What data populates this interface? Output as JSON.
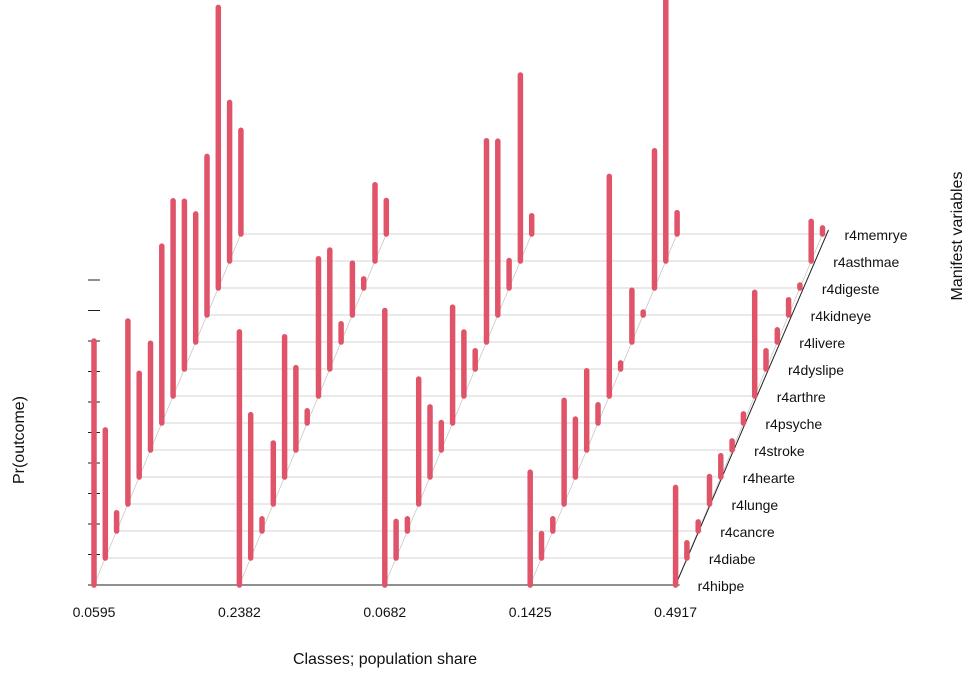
{
  "chart_data": {
    "type": "bar",
    "subtype": "3d-lca-profile",
    "title": "",
    "xlabel": "Classes; population share",
    "ylabel": "Pr(outcome)",
    "zlabel": "Manifest variables",
    "ylim": [
      0,
      1
    ],
    "grid": true,
    "bar_color": "#e0546a",
    "classes": [
      "0.0595",
      "0.2382",
      "0.0682",
      "0.1425",
      "0.4917"
    ],
    "variables": [
      "r4hibpe",
      "r4diabe",
      "r4cancre",
      "r4lunge",
      "r4hearte",
      "r4stroke",
      "r4psyche",
      "r4arthre",
      "r4dyslipe",
      "r4livere",
      "r4kidneye",
      "r4digeste",
      "r4asthmae",
      "r4memrye"
    ],
    "series": [
      {
        "class": "0.0595",
        "values": [
          0.8,
          0.42,
          0.06,
          0.6,
          0.34,
          0.35,
          0.58,
          0.64,
          0.55,
          0.42,
          0.52,
          0.92,
          0.52,
          0.34
        ]
      },
      {
        "class": "0.2382",
        "values": [
          0.83,
          0.47,
          0.04,
          0.2,
          0.46,
          0.27,
          0.04,
          0.45,
          0.39,
          0.06,
          0.17,
          0.03,
          0.25,
          0.11
        ]
      },
      {
        "class": "0.0682",
        "values": [
          0.9,
          0.12,
          0.04,
          0.41,
          0.23,
          0.09,
          0.38,
          0.21,
          0.06,
          0.66,
          0.57,
          0.09,
          0.61,
          0.06
        ]
      },
      {
        "class": "0.1425",
        "values": [
          0.37,
          0.08,
          0.04,
          0.34,
          0.19,
          0.26,
          0.06,
          0.72,
          0.02,
          0.17,
          0.01,
          0.45,
          0.99,
          0.07
        ]
      },
      {
        "class": "0.4917",
        "values": [
          0.32,
          0.05,
          0.03,
          0.09,
          0.07,
          0.03,
          0.03,
          0.34,
          0.06,
          0.04,
          0.05,
          0.01,
          0.13,
          0.02
        ]
      }
    ]
  }
}
